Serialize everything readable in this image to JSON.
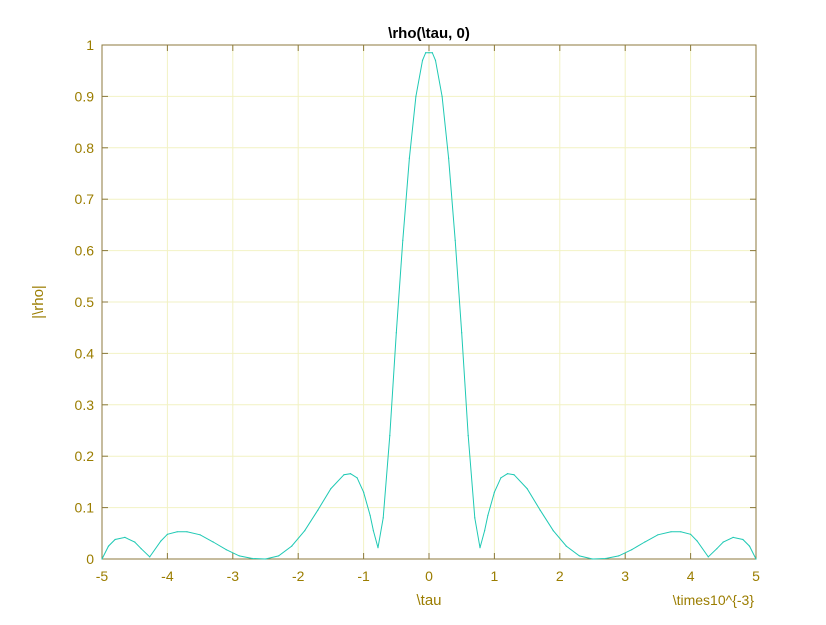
{
  "chart_data": {
    "type": "line",
    "title": "\\rho(\\tau, 0)",
    "xlabel": "\\tau",
    "ylabel": "|\\rho|",
    "x_exponent_label": "\\times10^{-3}",
    "xlim": [
      -5,
      5
    ],
    "ylim": [
      0,
      1
    ],
    "xticks": [
      -5,
      -4,
      -3,
      -2,
      -1,
      0,
      1,
      2,
      3,
      4,
      5
    ],
    "yticks": [
      0,
      0.1,
      0.2,
      0.3,
      0.4,
      0.5,
      0.6,
      0.7,
      0.8,
      0.9,
      1
    ],
    "ytick_labels": [
      "0",
      "0.1",
      "0.2",
      "0.3",
      "0.4",
      "0.5",
      "0.6",
      "0.7",
      "0.8",
      "0.9",
      "1"
    ],
    "grid": true,
    "series": [
      {
        "color": "#1fc9b4",
        "x": [
          -5,
          -4.9,
          -4.8,
          -4.65,
          -4.5,
          -4.4,
          -4.27,
          -4.1,
          -4.0,
          -3.85,
          -3.7,
          -3.5,
          -3.3,
          -3.1,
          -2.9,
          -2.7,
          -2.5,
          -2.3,
          -2.1,
          -1.9,
          -1.7,
          -1.5,
          -1.3,
          -1.2,
          -1.1,
          -1.0,
          -0.9,
          -0.85,
          -0.78,
          -0.7,
          -0.6,
          -0.5,
          -0.4,
          -0.3,
          -0.2,
          -0.1,
          -0.05,
          0,
          0.05,
          0.1,
          0.2,
          0.3,
          0.4,
          0.5,
          0.6,
          0.7,
          0.78,
          0.85,
          0.9,
          1.0,
          1.1,
          1.2,
          1.3,
          1.5,
          1.7,
          1.9,
          2.1,
          2.3,
          2.5,
          2.7,
          2.9,
          3.1,
          3.3,
          3.5,
          3.7,
          3.85,
          4.0,
          4.1,
          4.27,
          4.4,
          4.5,
          4.65,
          4.8,
          4.9,
          5
        ],
        "y": [
          0.0,
          0.025,
          0.038,
          0.042,
          0.033,
          0.02,
          0.004,
          0.035,
          0.048,
          0.053,
          0.053,
          0.047,
          0.033,
          0.018,
          0.006,
          0.001,
          0.0,
          0.006,
          0.025,
          0.055,
          0.095,
          0.137,
          0.164,
          0.166,
          0.158,
          0.13,
          0.085,
          0.055,
          0.022,
          0.08,
          0.24,
          0.44,
          0.62,
          0.78,
          0.9,
          0.97,
          0.985,
          0.985,
          0.985,
          0.97,
          0.9,
          0.78,
          0.62,
          0.44,
          0.24,
          0.08,
          0.022,
          0.055,
          0.085,
          0.13,
          0.158,
          0.166,
          0.164,
          0.137,
          0.095,
          0.055,
          0.025,
          0.006,
          0.0,
          0.001,
          0.006,
          0.018,
          0.033,
          0.047,
          0.053,
          0.053,
          0.048,
          0.035,
          0.004,
          0.02,
          0.033,
          0.042,
          0.038,
          0.025,
          0.0
        ]
      }
    ],
    "colors": {
      "axis_text": "#9b7d00",
      "title_text": "#000000",
      "grid": "#f2f2c4",
      "axes_box": "#8c7a3c"
    }
  }
}
